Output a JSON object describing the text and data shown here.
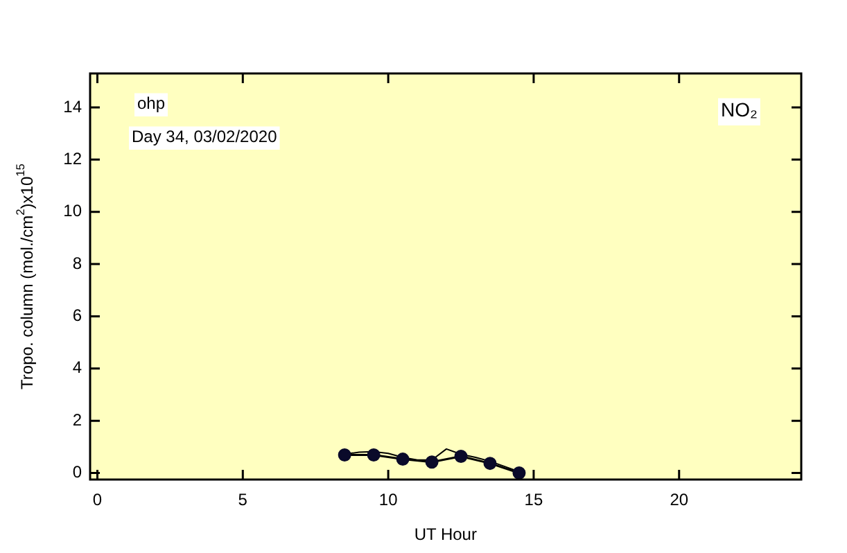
{
  "chart_data": {
    "type": "line",
    "xlabel": "UT Hour",
    "ylabel": "Tropo. column (mol./cm$^{2}$)x10$^{15}$",
    "annotations": [
      "ohp",
      "Day 34, 03/02/2020",
      "NO₂"
    ],
    "series": [
      {
        "color": "#0a0a2a",
        "marker": "circle",
        "line_style": "solid",
        "x": [
          8.5,
          9.5,
          10.5,
          11.5,
          12.5,
          13.5,
          14.5
        ],
        "values": [
          0.69,
          0.69,
          0.53,
          0.42,
          0.64,
          0.37,
          0.0
        ]
      },
      {
        "color": "#000000",
        "marker": "none",
        "line_style": "solid",
        "x": [
          8.5,
          9,
          9.5,
          10,
          10.5,
          11,
          11.5,
          12,
          12.5,
          13,
          13.5,
          14,
          14.5
        ],
        "values": [
          0.72,
          0.8,
          0.82,
          0.75,
          0.6,
          0.5,
          0.5,
          0.92,
          0.72,
          0.6,
          0.45,
          0.25,
          0.05
        ]
      }
    ],
    "xlim": [
      -0.25,
      24.2
    ],
    "xticks": [
      0,
      5,
      10,
      15,
      20
    ],
    "ylim": [
      -0.25,
      15.3
    ],
    "yticks": [
      0,
      2,
      4,
      6,
      8,
      10,
      12,
      14
    ],
    "grid": false,
    "legend": false
  }
}
